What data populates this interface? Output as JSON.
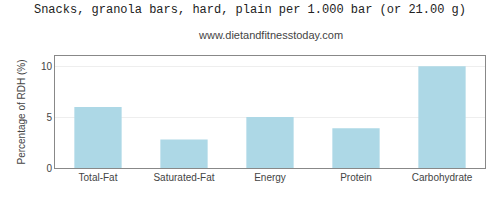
{
  "chart_data": {
    "type": "bar",
    "title": "Snacks, granola bars, hard, plain per 1.000 bar (or 21.00 g)",
    "subtitle": "www.dietandfitnesstoday.com",
    "categories": [
      "Total-Fat",
      "Saturated-Fat",
      "Energy",
      "Protein",
      "Carbohydrate"
    ],
    "values": [
      6.0,
      2.8,
      5.0,
      3.9,
      10.0
    ],
    "color": "#add8e6",
    "ylabel": "Percentage of RDH (%)",
    "ylim": [
      0,
      11
    ],
    "yticks": [
      0,
      5,
      10
    ],
    "grid": true
  }
}
